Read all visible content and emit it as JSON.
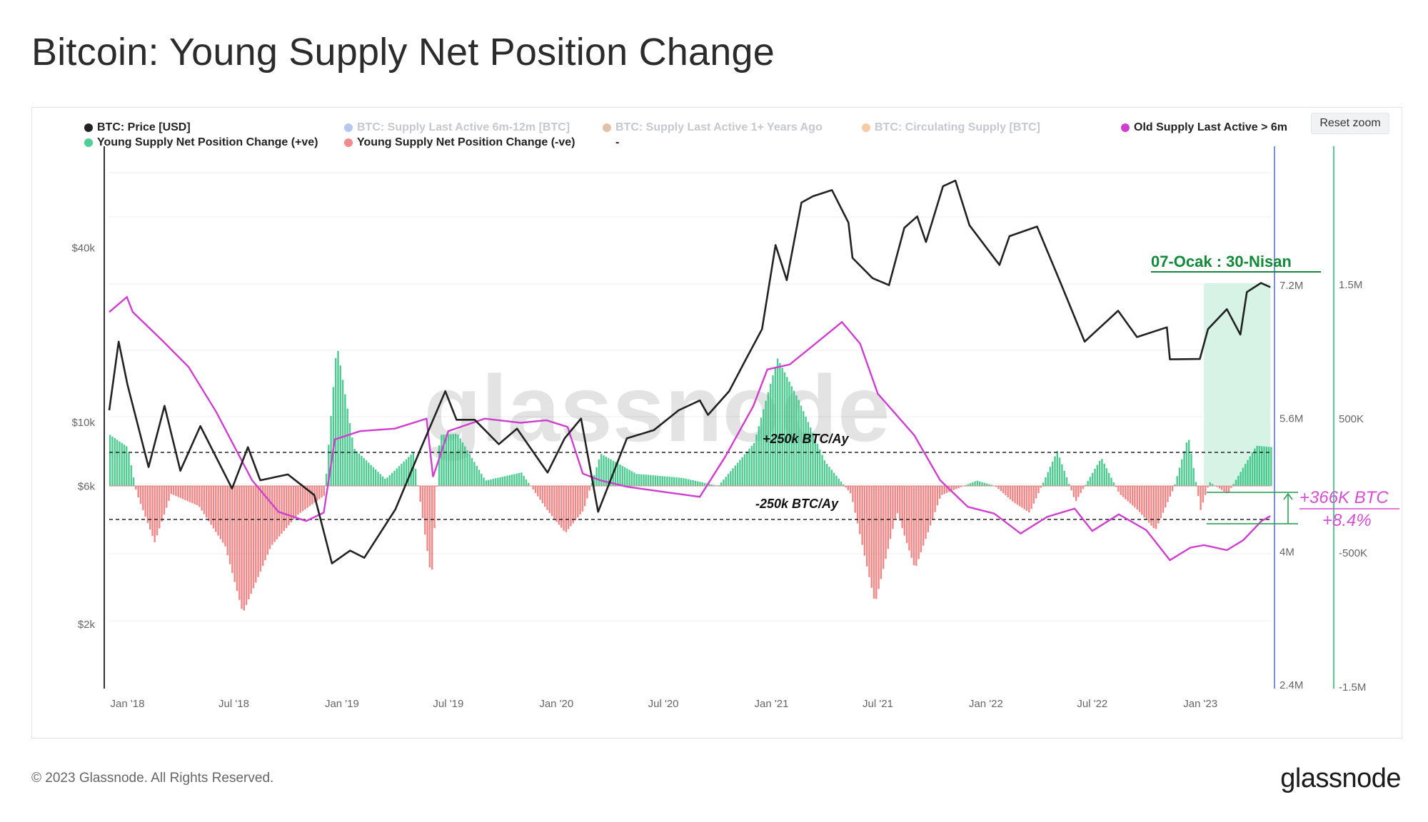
{
  "title": "Bitcoin: Young Supply Net Position Change",
  "footer": "© 2023 Glassnode. All Rights Reserved.",
  "brand": "glassnode",
  "reset_zoom": "Reset zoom",
  "legend": [
    {
      "label": "BTC: Price [USD]",
      "color": "#222222",
      "active": true
    },
    {
      "label": "BTC: Supply Last Active 6m-12m [BTC]",
      "color": "#7b9ae0",
      "active": false
    },
    {
      "label": "BTC: Supply Last Active 1+ Years Ago",
      "color": "#c98f63",
      "active": false
    },
    {
      "label": "BTC: Circulating Supply [BTC]",
      "color": "#f0a058",
      "active": false
    },
    {
      "label": "Old Supply Last Active > 6m",
      "color": "#cf3fcf",
      "active": true
    },
    {
      "label": "Young Supply Net Position Change (+ve)",
      "color": "#4fcf94",
      "active": true
    },
    {
      "label": "Young Supply Net Position Change (-ve)",
      "color": "#f28b8b",
      "active": true
    },
    {
      "label": "-",
      "color": "",
      "active": true
    }
  ],
  "watermark": "glassnode",
  "annotations": {
    "period": "07-Ocak : 30-Nisan",
    "plus_line": "+250k BTC/Ay",
    "minus_line": "-250k BTC/Ay",
    "change_btc": "+366K BTC",
    "change_pct": "+8.4%"
  },
  "colors": {
    "price": "#222222",
    "old_supply": "#cf3fcf",
    "positive": "#2ec27e",
    "negative": "#f07070",
    "highlight": "#d6f3e6",
    "period_text": "#138a3a",
    "annotation_magenta": "#d44fd4",
    "bracket": "#1f9c4f",
    "right_axis_blue": "#7b8fd6",
    "right_axis_green": "#57c98f"
  },
  "chart_data": {
    "type": "line",
    "x_ticks": [
      "Jan '18",
      "Jul '18",
      "Jan '19",
      "Jul '19",
      "Jan '20",
      "Jul '20",
      "Jan '21",
      "Jul '21",
      "Jan '22",
      "Jul '22",
      "Jan '23"
    ],
    "x_range": [
      "2017-12-01",
      "2023-05-01"
    ],
    "y_left": {
      "scale": "log",
      "ticks": [
        "$2k",
        "$6k",
        "$10k",
        "$40k"
      ],
      "tick_values": [
        2000,
        6000,
        10000,
        40000
      ]
    },
    "y_supply": {
      "ticks": [
        "2.4M",
        "4M",
        "5.6M",
        "7.2M"
      ],
      "tick_values": [
        2400000,
        4000000,
        5600000,
        7200000
      ]
    },
    "y_change": {
      "ticks": [
        "-1.5M",
        "-500K",
        "500K",
        "1.5M"
      ],
      "tick_values": [
        -1500000,
        -500000,
        500000,
        1500000
      ]
    },
    "thresholds": [
      250000,
      -250000
    ],
    "highlight_range": [
      "2023-01-07",
      "2023-04-30"
    ],
    "series": [
      {
        "name": "BTC: Price [USD]",
        "axis": "left",
        "points": [
          [
            "2017-12-01",
            11000
          ],
          [
            "2017-12-17",
            19000
          ],
          [
            "2018-01-01",
            13500
          ],
          [
            "2018-02-06",
            7000
          ],
          [
            "2018-03-05",
            11400
          ],
          [
            "2018-04-01",
            6800
          ],
          [
            "2018-05-05",
            9700
          ],
          [
            "2018-06-28",
            5900
          ],
          [
            "2018-07-25",
            8200
          ],
          [
            "2018-08-15",
            6300
          ],
          [
            "2018-10-01",
            6600
          ],
          [
            "2018-11-15",
            5600
          ],
          [
            "2018-12-15",
            3250
          ],
          [
            "2019-01-15",
            3600
          ],
          [
            "2019-02-08",
            3400
          ],
          [
            "2019-04-02",
            5000
          ],
          [
            "2019-05-14",
            8000
          ],
          [
            "2019-06-26",
            12800
          ],
          [
            "2019-07-15",
            10200
          ],
          [
            "2019-08-15",
            10200
          ],
          [
            "2019-09-25",
            8400
          ],
          [
            "2019-10-26",
            9500
          ],
          [
            "2019-12-17",
            6700
          ],
          [
            "2020-01-15",
            8800
          ],
          [
            "2020-02-12",
            10300
          ],
          [
            "2020-03-12",
            4900
          ],
          [
            "2020-04-30",
            8800
          ],
          [
            "2020-06-15",
            9400
          ],
          [
            "2020-07-27",
            11000
          ],
          [
            "2020-09-01",
            11900
          ],
          [
            "2020-09-15",
            10600
          ],
          [
            "2020-10-21",
            12800
          ],
          [
            "2020-11-15",
            16000
          ],
          [
            "2020-12-16",
            21000
          ],
          [
            "2021-01-08",
            41000
          ],
          [
            "2021-01-27",
            31000
          ],
          [
            "2021-02-21",
            57500
          ],
          [
            "2021-03-13",
            60500
          ],
          [
            "2021-04-14",
            63500
          ],
          [
            "2021-05-12",
            49000
          ],
          [
            "2021-05-19",
            37000
          ],
          [
            "2021-06-22",
            31500
          ],
          [
            "2021-07-20",
            29800
          ],
          [
            "2021-08-15",
            47000
          ],
          [
            "2021-09-06",
            51500
          ],
          [
            "2021-09-21",
            42000
          ],
          [
            "2021-10-20",
            65500
          ],
          [
            "2021-11-10",
            68500
          ],
          [
            "2021-12-04",
            48000
          ],
          [
            "2022-01-24",
            35000
          ],
          [
            "2022-02-10",
            44000
          ],
          [
            "2022-03-29",
            47500
          ],
          [
            "2022-05-09",
            30000
          ],
          [
            "2022-06-18",
            19000
          ],
          [
            "2022-08-14",
            24300
          ],
          [
            "2022-09-15",
            19700
          ],
          [
            "2022-11-05",
            21300
          ],
          [
            "2022-11-10",
            16500
          ],
          [
            "2022-12-31",
            16550
          ],
          [
            "2023-01-14",
            21000
          ],
          [
            "2023-02-15",
            24600
          ],
          [
            "2023-03-10",
            20100
          ],
          [
            "2023-03-21",
            28200
          ],
          [
            "2023-04-14",
            30300
          ],
          [
            "2023-04-30",
            29300
          ]
        ]
      },
      {
        "name": "Old Supply Last Active > 6m",
        "axis": "supply",
        "points": [
          [
            "2017-12-01",
            6880000
          ],
          [
            "2017-12-31",
            7060000
          ],
          [
            "2018-01-10",
            6880000
          ],
          [
            "2018-03-01",
            6540000
          ],
          [
            "2018-04-15",
            6220000
          ],
          [
            "2018-06-01",
            5680000
          ],
          [
            "2018-08-01",
            4860000
          ],
          [
            "2018-09-15",
            4480000
          ],
          [
            "2018-11-01",
            4370000
          ],
          [
            "2018-12-01",
            4470000
          ],
          [
            "2018-12-20",
            5350000
          ],
          [
            "2019-02-01",
            5450000
          ],
          [
            "2019-04-01",
            5480000
          ],
          [
            "2019-05-25",
            5600000
          ],
          [
            "2019-06-05",
            4900000
          ],
          [
            "2019-07-01",
            5450000
          ],
          [
            "2019-09-01",
            5600000
          ],
          [
            "2019-11-01",
            5550000
          ],
          [
            "2019-12-15",
            5580000
          ],
          [
            "2020-01-20",
            5500000
          ],
          [
            "2020-02-15",
            4940000
          ],
          [
            "2020-03-15",
            4860000
          ],
          [
            "2020-05-01",
            4780000
          ],
          [
            "2020-07-01",
            4720000
          ],
          [
            "2020-09-01",
            4660000
          ],
          [
            "2020-10-15",
            5150000
          ],
          [
            "2020-12-01",
            5750000
          ],
          [
            "2020-12-25",
            6190000
          ],
          [
            "2021-02-01",
            6250000
          ],
          [
            "2021-03-15",
            6490000
          ],
          [
            "2021-05-01",
            6760000
          ],
          [
            "2021-06-01",
            6500000
          ],
          [
            "2021-07-01",
            5900000
          ],
          [
            "2021-09-01",
            5400000
          ],
          [
            "2021-10-15",
            4860000
          ],
          [
            "2021-12-01",
            4540000
          ],
          [
            "2022-01-15",
            4460000
          ],
          [
            "2022-03-01",
            4220000
          ],
          [
            "2022-04-15",
            4420000
          ],
          [
            "2022-06-01",
            4520000
          ],
          [
            "2022-07-01",
            4250000
          ],
          [
            "2022-08-15",
            4450000
          ],
          [
            "2022-10-01",
            4260000
          ],
          [
            "2022-11-10",
            3900000
          ],
          [
            "2022-12-15",
            4050000
          ],
          [
            "2023-01-07",
            4080000
          ],
          [
            "2023-02-15",
            4020000
          ],
          [
            "2023-03-15",
            4140000
          ],
          [
            "2023-04-15",
            4370000
          ],
          [
            "2023-04-30",
            4430000
          ]
        ]
      },
      {
        "name": "Young Supply Net Position Change (+ve / -ve)",
        "axis": "change",
        "points": [
          [
            "2017-12-01",
            380000
          ],
          [
            "2017-12-31",
            290000
          ],
          [
            "2018-01-15",
            -50000
          ],
          [
            "2018-02-15",
            -420000
          ],
          [
            "2018-03-15",
            -60000
          ],
          [
            "2018-05-01",
            -150000
          ],
          [
            "2018-06-15",
            -450000
          ],
          [
            "2018-07-15",
            -950000
          ],
          [
            "2018-09-01",
            -450000
          ],
          [
            "2018-10-15",
            -220000
          ],
          [
            "2018-12-01",
            -70000
          ],
          [
            "2018-12-22",
            1060000
          ],
          [
            "2019-01-20",
            280000
          ],
          [
            "2019-03-15",
            50000
          ],
          [
            "2019-05-01",
            250000
          ],
          [
            "2019-06-01",
            -700000
          ],
          [
            "2019-06-15",
            380000
          ],
          [
            "2019-07-15",
            390000
          ],
          [
            "2019-09-01",
            40000
          ],
          [
            "2019-11-01",
            100000
          ],
          [
            "2019-12-15",
            -180000
          ],
          [
            "2020-01-15",
            -350000
          ],
          [
            "2020-02-15",
            -180000
          ],
          [
            "2020-03-15",
            240000
          ],
          [
            "2020-05-15",
            90000
          ],
          [
            "2020-08-01",
            60000
          ],
          [
            "2020-10-01",
            0
          ],
          [
            "2020-12-01",
            320000
          ],
          [
            "2021-01-10",
            950000
          ],
          [
            "2021-02-15",
            640000
          ],
          [
            "2021-04-01",
            180000
          ],
          [
            "2021-05-15",
            -60000
          ],
          [
            "2021-06-25",
            -880000
          ],
          [
            "2021-08-01",
            -190000
          ],
          [
            "2021-09-01",
            -620000
          ],
          [
            "2021-10-15",
            -70000
          ],
          [
            "2021-12-15",
            40000
          ],
          [
            "2022-01-15",
            0
          ],
          [
            "2022-02-15",
            -120000
          ],
          [
            "2022-03-15",
            -200000
          ],
          [
            "2022-05-01",
            260000
          ],
          [
            "2022-06-01",
            -120000
          ],
          [
            "2022-07-15",
            210000
          ],
          [
            "2022-08-15",
            -60000
          ],
          [
            "2022-09-15",
            -180000
          ],
          [
            "2022-10-15",
            -330000
          ],
          [
            "2022-11-15",
            -20000
          ],
          [
            "2022-12-10",
            370000
          ],
          [
            "2022-12-31",
            -180000
          ],
          [
            "2023-01-15",
            30000
          ],
          [
            "2023-02-15",
            -60000
          ],
          [
            "2023-03-15",
            150000
          ],
          [
            "2023-04-05",
            300000
          ],
          [
            "2023-04-30",
            290000
          ]
        ]
      }
    ]
  }
}
